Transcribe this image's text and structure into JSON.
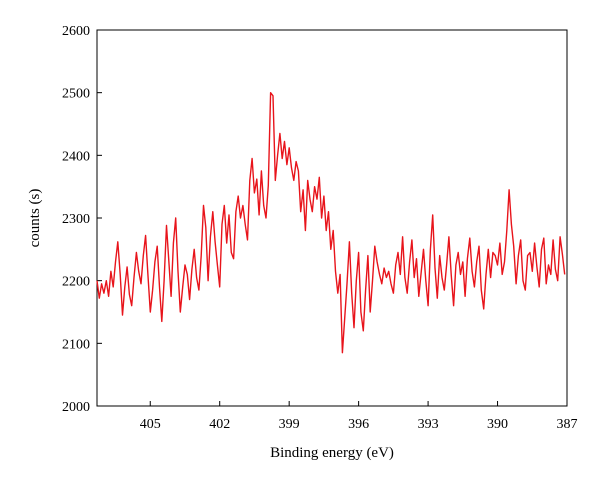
{
  "chart_data": {
    "type": "line",
    "xlabel": "Binding energy (eV)",
    "ylabel": "counts (s)",
    "xlim": [
      407.3,
      387
    ],
    "ylim": [
      2000,
      2600
    ],
    "x_reversed": true,
    "x_ticks": [
      "405",
      "402",
      "399",
      "396",
      "393",
      "390",
      "387"
    ],
    "y_ticks": [
      "2000",
      "2100",
      "2200",
      "2300",
      "2400",
      "2500",
      "2600"
    ],
    "grid": false,
    "legend": "none",
    "line_color": "#e8141b",
    "series": [
      {
        "x": [
          407.3,
          407.2,
          407.1,
          407.0,
          406.9,
          406.8,
          406.7,
          406.6,
          406.5,
          406.4,
          406.3,
          406.2,
          406.1,
          406.0,
          405.9,
          405.8,
          405.7,
          405.6,
          405.5,
          405.4,
          405.3,
          405.2,
          405.1,
          405.0,
          404.9,
          404.8,
          404.7,
          404.6,
          404.5,
          404.4,
          404.3,
          404.2,
          404.1,
          404.0,
          403.9,
          403.8,
          403.7,
          403.6,
          403.5,
          403.4,
          403.3,
          403.2,
          403.1,
          403.0,
          402.9,
          402.8,
          402.7,
          402.6,
          402.5,
          402.4,
          402.3,
          402.2,
          402.1,
          402.0,
          401.9,
          401.8,
          401.7,
          401.6,
          401.5,
          401.4,
          401.3,
          401.2,
          401.1,
          401.0,
          400.9,
          400.8,
          400.7,
          400.6,
          400.5,
          400.4,
          400.3,
          400.2,
          400.1,
          400.0,
          399.9,
          399.8,
          399.7,
          399.6,
          399.5,
          399.4,
          399.3,
          399.2,
          399.1,
          399.0,
          398.9,
          398.8,
          398.7,
          398.6,
          398.5,
          398.4,
          398.3,
          398.2,
          398.1,
          398.0,
          397.9,
          397.8,
          397.7,
          397.6,
          397.5,
          397.4,
          397.3,
          397.2,
          397.1,
          397.0,
          396.9,
          396.8,
          396.7,
          396.6,
          396.5,
          396.4,
          396.3,
          396.2,
          396.1,
          396.0,
          395.9,
          395.8,
          395.7,
          395.6,
          395.5,
          395.4,
          395.3,
          395.2,
          395.1,
          395.0,
          394.9,
          394.8,
          394.7,
          394.6,
          394.5,
          394.4,
          394.3,
          394.2,
          394.1,
          394.0,
          393.9,
          393.8,
          393.7,
          393.6,
          393.5,
          393.4,
          393.3,
          393.2,
          393.1,
          393.0,
          392.9,
          392.8,
          392.7,
          392.6,
          392.5,
          392.4,
          392.3,
          392.2,
          392.1,
          392.0,
          391.9,
          391.8,
          391.7,
          391.6,
          391.5,
          391.4,
          391.3,
          391.2,
          391.1,
          391.0,
          390.9,
          390.8,
          390.7,
          390.6,
          390.5,
          390.4,
          390.3,
          390.2,
          390.1,
          390.0,
          389.9,
          389.8,
          389.7,
          389.6,
          389.5,
          389.4,
          389.3,
          389.2,
          389.1,
          389.0,
          388.9,
          388.8,
          388.7,
          388.6,
          388.5,
          388.4,
          388.3,
          388.2,
          388.1,
          388.0,
          387.9,
          387.8,
          387.7,
          387.6,
          387.5,
          387.4,
          387.3,
          387.2,
          387.1
        ],
        "values": [
          2200,
          2172,
          2195,
          2180,
          2200,
          2175,
          2215,
          2190,
          2230,
          2262,
          2210,
          2145,
          2190,
          2222,
          2178,
          2160,
          2205,
          2245,
          2215,
          2195,
          2240,
          2272,
          2210,
          2150,
          2185,
          2230,
          2255,
          2190,
          2135,
          2200,
          2288,
          2232,
          2175,
          2260,
          2300,
          2215,
          2150,
          2190,
          2225,
          2210,
          2170,
          2218,
          2250,
          2205,
          2185,
          2240,
          2320,
          2285,
          2200,
          2270,
          2310,
          2262,
          2225,
          2190,
          2290,
          2320,
          2260,
          2305,
          2245,
          2235,
          2310,
          2335,
          2300,
          2320,
          2290,
          2265,
          2360,
          2395,
          2340,
          2362,
          2305,
          2375,
          2320,
          2300,
          2352,
          2500,
          2495,
          2360,
          2400,
          2435,
          2395,
          2422,
          2385,
          2412,
          2380,
          2360,
          2390,
          2375,
          2310,
          2345,
          2280,
          2360,
          2330,
          2310,
          2350,
          2330,
          2365,
          2300,
          2335,
          2280,
          2310,
          2250,
          2280,
          2215,
          2180,
          2210,
          2085,
          2140,
          2195,
          2262,
          2180,
          2125,
          2200,
          2245,
          2150,
          2120,
          2185,
          2240,
          2150,
          2200,
          2255,
          2230,
          2210,
          2195,
          2220,
          2205,
          2215,
          2195,
          2180,
          2225,
          2245,
          2210,
          2270,
          2205,
          2180,
          2230,
          2265,
          2205,
          2235,
          2175,
          2212,
          2250,
          2200,
          2160,
          2250,
          2305,
          2220,
          2172,
          2240,
          2205,
          2185,
          2225,
          2270,
          2210,
          2160,
          2225,
          2245,
          2210,
          2230,
          2175,
          2235,
          2268,
          2215,
          2190,
          2230,
          2255,
          2185,
          2155,
          2210,
          2250,
          2205,
          2245,
          2240,
          2225,
          2260,
          2210,
          2230,
          2280,
          2345,
          2290,
          2255,
          2195,
          2240,
          2265,
          2200,
          2185,
          2240,
          2245,
          2215,
          2260,
          2222,
          2190,
          2250,
          2268,
          2195,
          2225,
          2210,
          2265,
          2218,
          2200,
          2270,
          2242,
          2210
        ]
      }
    ]
  }
}
